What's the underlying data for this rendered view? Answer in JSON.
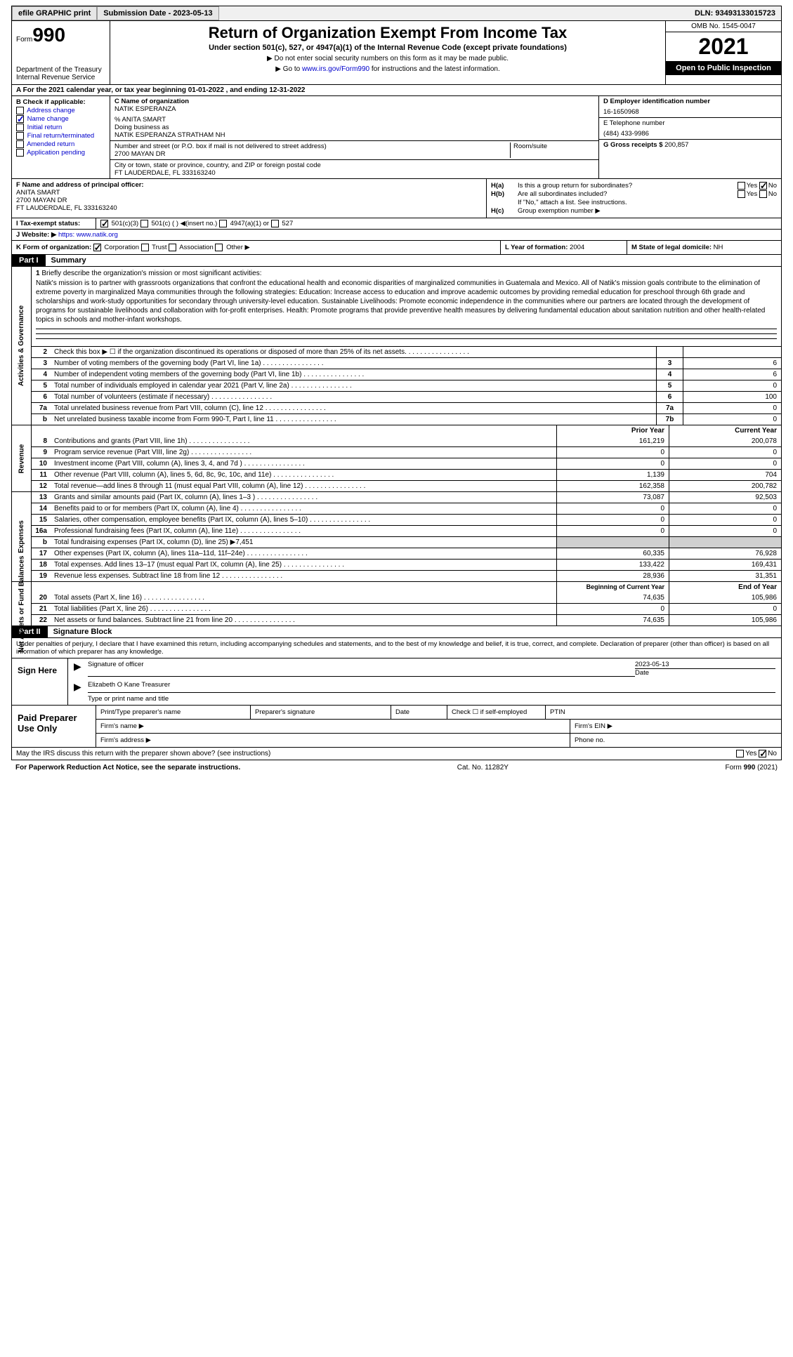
{
  "top": {
    "efile": "efile GRAPHIC print",
    "submission": "Submission Date - 2023-05-13",
    "dln": "DLN: 93493133015723"
  },
  "header": {
    "form_prefix": "Form",
    "form_number": "990",
    "dept": "Department of the Treasury\nInternal Revenue Service",
    "title": "Return of Organization Exempt From Income Tax",
    "sub1": "Under section 501(c), 527, or 4947(a)(1) of the Internal Revenue Code (except private foundations)",
    "sub2a": "▶ Do not enter social security numbers on this form as it may be made public.",
    "sub2b_pre": "▶ Go to ",
    "sub2b_link": "www.irs.gov/Form990",
    "sub2b_post": " for instructions and the latest information.",
    "omb": "OMB No. 1545-0047",
    "year": "2021",
    "inspection": "Open to Public Inspection"
  },
  "rowA": "A For the 2021 calendar year, or tax year beginning 01-01-2022   , and ending 12-31-2022",
  "boxB": {
    "label": "B Check if applicable:",
    "items": [
      "Address change",
      "Name change",
      "Initial return",
      "Final return/terminated",
      "Amended return",
      "Application pending"
    ],
    "checked_index": 1
  },
  "boxC": {
    "label": "C Name of organization",
    "name": "NATIK ESPERANZA",
    "pct": "% ANITA SMART",
    "dba_label": "Doing business as",
    "dba": "NATIK ESPERANZA STRATHAM NH",
    "addr_label": "Number and street (or P.O. box if mail is not delivered to street address)",
    "addr": "2700 MAYAN DR",
    "room_label": "Room/suite",
    "city_label": "City or town, state or province, country, and ZIP or foreign postal code",
    "city": "FT LAUDERDALE, FL  333163240"
  },
  "boxD": {
    "label": "D Employer identification number",
    "value": "16-1650968"
  },
  "boxE": {
    "label": "E Telephone number",
    "value": "(484) 433-9986"
  },
  "boxG": {
    "label": "G Gross receipts $",
    "value": "200,857"
  },
  "boxF": {
    "label": "F  Name and address of principal officer:",
    "name": "ANITA SMART",
    "addr1": "2700 MAYAN DR",
    "addr2": "FT LAUDERDALE, FL  333163240"
  },
  "boxH": {
    "ha_label": "H(a)",
    "ha_text": "Is this a group return for subordinates?",
    "ha_no": true,
    "hb_label": "H(b)",
    "hb_text": "Are all subordinates included?",
    "hb_note": "If \"No,\" attach a list. See instructions.",
    "hc_label": "H(c)",
    "hc_text": "Group exemption number ▶"
  },
  "rowI": {
    "label": "I   Tax-exempt status:",
    "opts": [
      "501(c)(3)",
      "501(c) (  ) ◀(insert no.)",
      "4947(a)(1) or",
      "527"
    ],
    "checked": 0
  },
  "rowJ": {
    "label": "J   Website: ▶",
    "value": "https: www.natik.org"
  },
  "rowK": {
    "label": "K Form of organization:",
    "opts": [
      "Corporation",
      "Trust",
      "Association",
      "Other ▶"
    ],
    "checked": 0
  },
  "rowL": {
    "label": "L Year of formation:",
    "value": "2004"
  },
  "rowM": {
    "label": "M State of legal domicile:",
    "value": "NH"
  },
  "part1": {
    "label": "Part I",
    "title": "Summary"
  },
  "mission": {
    "num": "1",
    "label": "Briefly describe the organization's mission or most significant activities:",
    "text": "Natik's mission is to partner with grassroots organizations that confront the educational health and economic disparities of marginalized communities in Guatemala and Mexico. All of Natik's mission goals contribute to the elimination of extreme poverty in marginalized Maya communities through the following strategies: Education: Increase access to education and improve academic outcomes by providing remedial education for preschool through 6th grade and scholarships and work-study opportunities for secondary through university-level education. Sustainable Livelihoods: Promote economic independence in the communities where our partners are located through the development of programs for sustainable livelihoods and collaboration with for-profit enterprises. Health: Promote programs that provide preventive health measures by delivering fundamental education about sanitation nutrition and other health-related topics in schools and mother-infant workshops."
  },
  "gov_rows": [
    {
      "n": "2",
      "d": "Check this box ▶ ☐ if the organization discontinued its operations or disposed of more than 25% of its net assets.",
      "box": "",
      "val": ""
    },
    {
      "n": "3",
      "d": "Number of voting members of the governing body (Part VI, line 1a)",
      "box": "3",
      "val": "6"
    },
    {
      "n": "4",
      "d": "Number of independent voting members of the governing body (Part VI, line 1b)",
      "box": "4",
      "val": "6"
    },
    {
      "n": "5",
      "d": "Total number of individuals employed in calendar year 2021 (Part V, line 2a)",
      "box": "5",
      "val": "0"
    },
    {
      "n": "6",
      "d": "Total number of volunteers (estimate if necessary)",
      "box": "6",
      "val": "100"
    },
    {
      "n": "7a",
      "d": "Total unrelated business revenue from Part VIII, column (C), line 12",
      "box": "7a",
      "val": "0"
    },
    {
      "n": "b",
      "d": "Net unrelated business taxable income from Form 990-T, Part I, line 11",
      "box": "7b",
      "val": "0"
    }
  ],
  "gov_vlabel": "Activities & Governance",
  "rev_header": {
    "prior": "Prior Year",
    "curr": "Current Year"
  },
  "rev_rows": [
    {
      "n": "8",
      "d": "Contributions and grants (Part VIII, line 1h)",
      "p": "161,219",
      "c": "200,078"
    },
    {
      "n": "9",
      "d": "Program service revenue (Part VIII, line 2g)",
      "p": "0",
      "c": "0"
    },
    {
      "n": "10",
      "d": "Investment income (Part VIII, column (A), lines 3, 4, and 7d )",
      "p": "0",
      "c": "0"
    },
    {
      "n": "11",
      "d": "Other revenue (Part VIII, column (A), lines 5, 6d, 8c, 9c, 10c, and 11e)",
      "p": "1,139",
      "c": "704"
    },
    {
      "n": "12",
      "d": "Total revenue—add lines 8 through 11 (must equal Part VIII, column (A), line 12)",
      "p": "162,358",
      "c": "200,782"
    }
  ],
  "rev_vlabel": "Revenue",
  "exp_rows": [
    {
      "n": "13",
      "d": "Grants and similar amounts paid (Part IX, column (A), lines 1–3 )",
      "p": "73,087",
      "c": "92,503"
    },
    {
      "n": "14",
      "d": "Benefits paid to or for members (Part IX, column (A), line 4)",
      "p": "0",
      "c": "0"
    },
    {
      "n": "15",
      "d": "Salaries, other compensation, employee benefits (Part IX, column (A), lines 5–10)",
      "p": "0",
      "c": "0"
    },
    {
      "n": "16a",
      "d": "Professional fundraising fees (Part IX, column (A), line 11e)",
      "p": "0",
      "c": "0"
    },
    {
      "n": "b",
      "d": "Total fundraising expenses (Part IX, column (D), line 25) ▶7,451",
      "p": "",
      "c": "",
      "shaded": true
    },
    {
      "n": "17",
      "d": "Other expenses (Part IX, column (A), lines 11a–11d, 11f–24e)",
      "p": "60,335",
      "c": "76,928"
    },
    {
      "n": "18",
      "d": "Total expenses. Add lines 13–17 (must equal Part IX, column (A), line 25)",
      "p": "133,422",
      "c": "169,431"
    },
    {
      "n": "19",
      "d": "Revenue less expenses. Subtract line 18 from line 12",
      "p": "28,936",
      "c": "31,351"
    }
  ],
  "exp_vlabel": "Expenses",
  "net_header": {
    "prior": "Beginning of Current Year",
    "curr": "End of Year"
  },
  "net_rows": [
    {
      "n": "20",
      "d": "Total assets (Part X, line 16)",
      "p": "74,635",
      "c": "105,986"
    },
    {
      "n": "21",
      "d": "Total liabilities (Part X, line 26)",
      "p": "0",
      "c": "0"
    },
    {
      "n": "22",
      "d": "Net assets or fund balances. Subtract line 21 from line 20",
      "p": "74,635",
      "c": "105,986"
    }
  ],
  "net_vlabel": "Net Assets or Fund Balances",
  "part2": {
    "label": "Part II",
    "title": "Signature Block"
  },
  "sig": {
    "declaration": "Under penalties of perjury, I declare that I have examined this return, including accompanying schedules and statements, and to the best of my knowledge and belief, it is true, correct, and complete. Declaration of preparer (other than officer) is based on all information of which preparer has any knowledge.",
    "sign_here": "Sign Here",
    "sig_officer": "Signature of officer",
    "date_label": "Date",
    "date_val": "2023-05-13",
    "name_title": "Elizabeth O Kane  Treasurer",
    "name_label": "Type or print name and title"
  },
  "preparer": {
    "fields": {
      "print_name": "Print/Type preparer's name",
      "prep_sig": "Preparer's signature",
      "date": "Date",
      "check_self": "Check ☐ if self-employed",
      "ptin": "PTIN",
      "firm_name": "Firm's name  ▶",
      "firm_ein": "Firm's EIN ▶",
      "firm_addr": "Firm's address ▶",
      "phone": "Phone no."
    },
    "label": "Paid Preparer Use Only"
  },
  "bottom": {
    "q": "May the IRS discuss this return with the preparer shown above? (see instructions)",
    "yes": "Yes",
    "no": "No",
    "no_checked": true
  },
  "footer": {
    "left": "For Paperwork Reduction Act Notice, see the separate instructions.",
    "mid": "Cat. No. 11282Y",
    "right": "Form 990 (2021)"
  }
}
